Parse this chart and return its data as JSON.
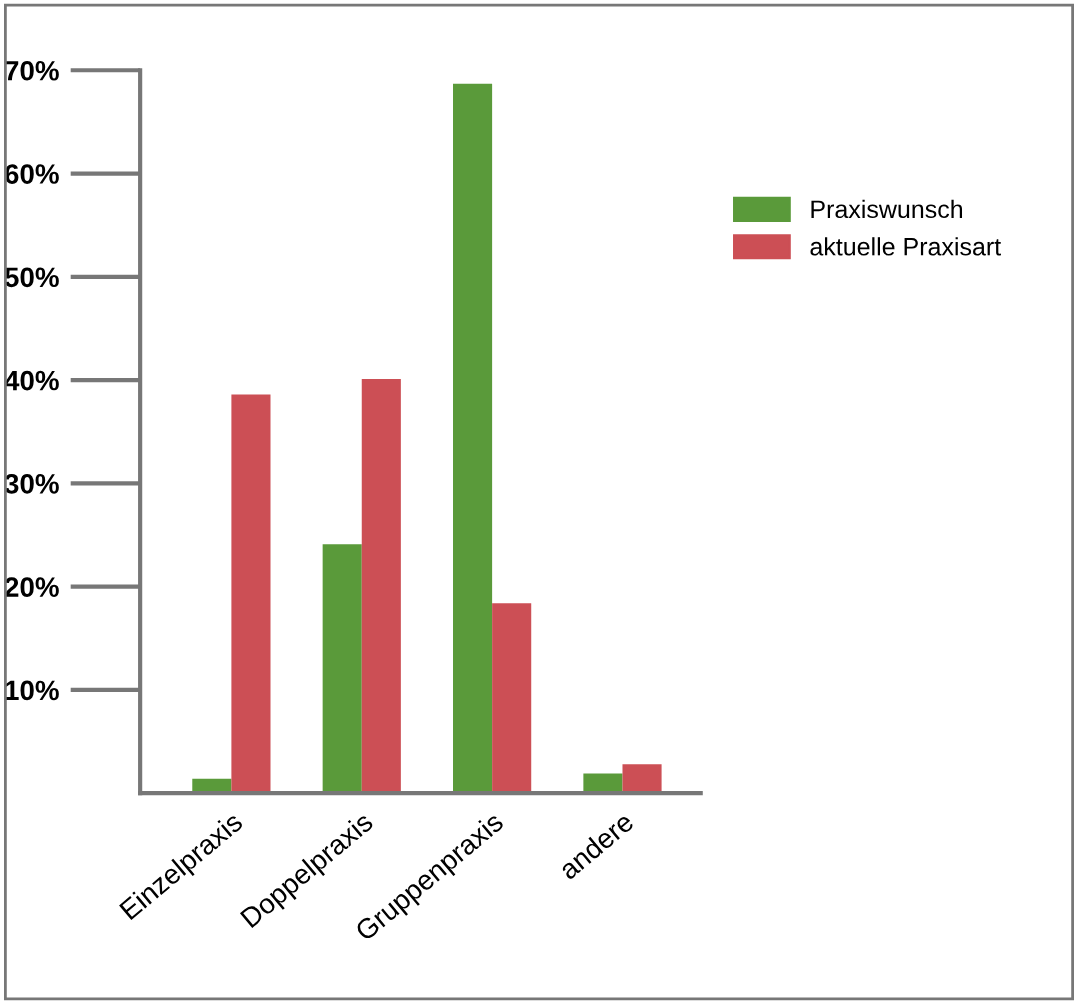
{
  "chart_data": {
    "type": "bar",
    "categories": [
      "Einzelpraxis",
      "Doppelpraxis",
      "Gruppenpraxis",
      "andere"
    ],
    "series": [
      {
        "name": "Praxiswunsch",
        "color": "#5a9a3a",
        "values": [
          1.4,
          24.1,
          68.7,
          1.9
        ]
      },
      {
        "name": "aktuelle Praxisart",
        "color": "#cc4f55",
        "values": [
          38.6,
          40.1,
          18.4,
          2.8
        ]
      }
    ],
    "ylim": [
      0,
      70
    ],
    "yticks": [
      {
        "value": 10,
        "label": "10%"
      },
      {
        "value": 20,
        "label": "20%"
      },
      {
        "value": 30,
        "label": "30%"
      },
      {
        "value": 40,
        "label": "40%"
      },
      {
        "value": 50,
        "label": "50%"
      },
      {
        "value": 60,
        "label": "60%"
      },
      {
        "value": 70,
        "label": "70%"
      }
    ],
    "grid": false,
    "legend": "right"
  }
}
